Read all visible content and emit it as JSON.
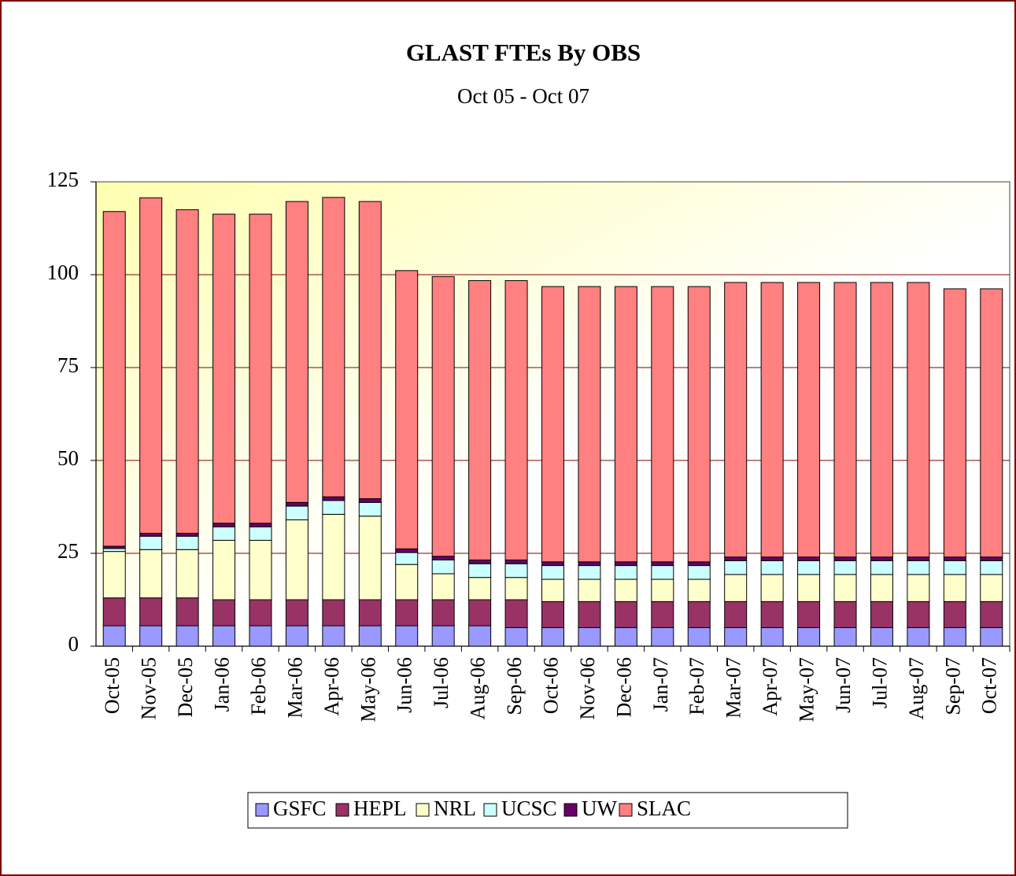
{
  "chart_data": {
    "type": "stacked_bar",
    "title": "GLAST FTEs By OBS",
    "subtitle": "Oct 05 - Oct 07",
    "categories": [
      "Oct-05",
      "Nov-05",
      "Dec-05",
      "Jan-06",
      "Feb-06",
      "Mar-06",
      "Apr-06",
      "May-06",
      "Jun-06",
      "Jul-06",
      "Aug-06",
      "Sep-06",
      "Oct-06",
      "Nov-06",
      "Dec-06",
      "Jan-07",
      "Feb-07",
      "Mar-07",
      "Apr-07",
      "May-07",
      "Jun-07",
      "Jul-07",
      "Aug-07",
      "Sep-07",
      "Oct-07"
    ],
    "series": [
      {
        "name": "GSFC",
        "color": "#9999ff",
        "values": [
          5.5,
          5.5,
          5.5,
          5.5,
          5.5,
          5.5,
          5.5,
          5.5,
          5.5,
          5.5,
          5.5,
          5,
          5,
          5,
          5,
          5,
          5,
          5,
          5,
          5,
          5,
          5,
          5,
          5,
          5
        ]
      },
      {
        "name": "HEPL",
        "color": "#993366",
        "values": [
          7.5,
          7.5,
          7.5,
          7,
          7,
          7,
          7,
          7,
          7,
          7,
          7,
          7.5,
          7,
          7,
          7,
          7,
          7,
          7,
          7,
          7,
          7,
          7,
          7,
          7,
          7
        ]
      },
      {
        "name": "NRL",
        "color": "#ffffcc",
        "values": [
          12.5,
          13,
          13,
          16,
          16,
          21.5,
          23,
          22.5,
          9.5,
          7,
          6,
          6,
          6,
          6,
          6,
          6,
          6,
          7.3,
          7.3,
          7.3,
          7.3,
          7.3,
          7.3,
          7.3,
          7.3
        ]
      },
      {
        "name": "UCSC",
        "color": "#ccffff",
        "values": [
          0.8,
          3.6,
          3.6,
          3.6,
          3.6,
          3.7,
          3.7,
          3.7,
          3.2,
          3.7,
          3.7,
          3.7,
          3.7,
          3.7,
          3.7,
          3.7,
          3.7,
          3.7,
          3.7,
          3.7,
          3.7,
          3.7,
          3.7,
          3.7,
          3.7
        ]
      },
      {
        "name": "UW",
        "color": "#660066",
        "values": [
          0.6,
          0.8,
          0.8,
          1,
          1,
          1,
          1,
          1,
          1,
          1,
          1,
          1,
          1,
          1,
          1,
          1,
          1,
          1,
          1,
          1,
          1,
          1,
          1,
          1,
          1
        ]
      },
      {
        "name": "SLAC",
        "color": "#ff8080",
        "values": [
          90.1,
          90.3,
          87.1,
          83.2,
          83.2,
          81,
          80.6,
          80,
          74.9,
          75.3,
          75.2,
          75.2,
          74.1,
          74.1,
          74.1,
          74.1,
          74.1,
          73.9,
          73.9,
          73.9,
          73.9,
          73.9,
          73.9,
          72.2,
          72.2
        ]
      }
    ],
    "ylim": [
      0,
      125
    ],
    "yticks": [
      0,
      25,
      50,
      75,
      100,
      125
    ],
    "grid": true
  }
}
